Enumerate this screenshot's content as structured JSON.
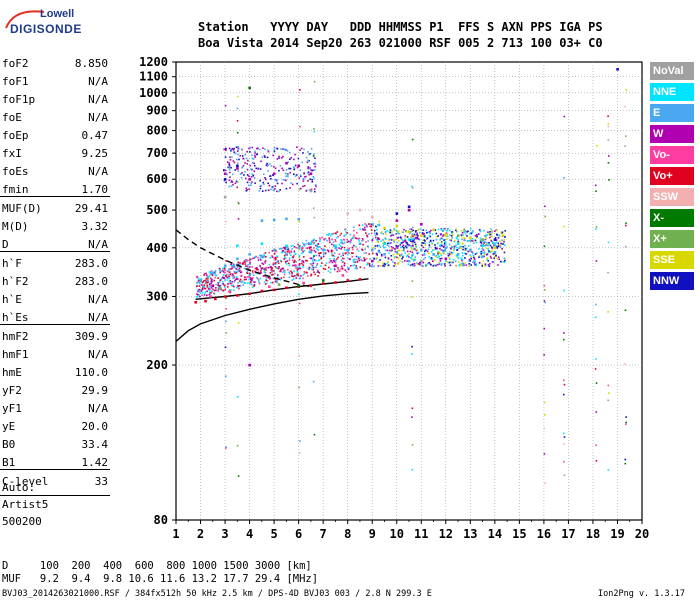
{
  "logo": {
    "top": "Lowell",
    "main": "DIGISONDE"
  },
  "header": {
    "line1": "Station   YYYY DAY   DDD HHMMSS P1  FFS S AXN PPS IGA PS",
    "line2": "Boa Vista 2014 Sep20 263 021000 RSF 005 2 713 100 03+ C0"
  },
  "params": [
    {
      "label": "foF2",
      "value": "8.850"
    },
    {
      "label": "foF1",
      "value": "N/A"
    },
    {
      "label": "foF1p",
      "value": "N/A"
    },
    {
      "label": "foE",
      "value": "N/A"
    },
    {
      "label": "foEp",
      "value": "0.47"
    },
    {
      "label": "fxI",
      "value": "9.25"
    },
    {
      "label": "foEs",
      "value": "N/A"
    },
    {
      "label": "fmin",
      "value": "1.70"
    },
    {
      "label": "MUF(D)",
      "value": "29.41"
    },
    {
      "label": "M(D)",
      "value": "3.32"
    },
    {
      "label": "D",
      "value": "N/A"
    },
    {
      "label": "h`F",
      "value": "283.0"
    },
    {
      "label": "h`F2",
      "value": "283.0"
    },
    {
      "label": "h`E",
      "value": "N/A"
    },
    {
      "label": "h`Es",
      "value": "N/A"
    },
    {
      "label": "hmF2",
      "value": "309.9"
    },
    {
      "label": "hmF1",
      "value": "N/A"
    },
    {
      "label": "hmE",
      "value": "110.0"
    },
    {
      "label": "yF2",
      "value": "29.9"
    },
    {
      "label": "yF1",
      "value": "N/A"
    },
    {
      "label": "yE",
      "value": "20.0"
    },
    {
      "label": "B0",
      "value": "33.4"
    },
    {
      "label": "B1",
      "value": "1.42"
    },
    {
      "label": "C-level",
      "value": "33"
    }
  ],
  "auto": [
    "Auto:",
    "Artist5",
    "500200"
  ],
  "legend": [
    {
      "label": "NoVal",
      "color": "#a0a0a0"
    },
    {
      "label": "NNE",
      "color": "#00e5ff"
    },
    {
      "label": "E",
      "color": "#4aa8f0"
    },
    {
      "label": "W",
      "color": "#b000b0"
    },
    {
      "label": "Vo-",
      "color": "#ff3ca0"
    },
    {
      "label": "Vo+",
      "color": "#e00020"
    },
    {
      "label": "SSW",
      "color": "#f4b0b0"
    },
    {
      "label": "X-",
      "color": "#007a00"
    },
    {
      "label": "X+",
      "color": "#70b050"
    },
    {
      "label": "SSE",
      "color": "#d8d800"
    },
    {
      "label": "NNW",
      "color": "#1010c0"
    }
  ],
  "footer": {
    "d_line": "D     100  200  400  600  800 1000 1500 3000 [km]",
    "muf_line": "MUF   9.2  9.4  9.8 10.6 11.6 13.2 17.7 29.4 [MHz]",
    "file_line": "BVJ03_2014263021000.RSF / 384fx512h 50 kHz 2.5 km / DPS-4D BVJ03 003 / 2.8 N 299.3 E",
    "version": "Ion2Png v. 1.3.17"
  },
  "chart_data": {
    "type": "scatter",
    "title": "",
    "xlabel": "",
    "ylabel": "",
    "xlim": [
      1,
      20
    ],
    "ylim": [
      80,
      1200
    ],
    "x_ticks": [
      1,
      2,
      3,
      4,
      5,
      6,
      7,
      8,
      9,
      10,
      11,
      12,
      13,
      14,
      15,
      16,
      17,
      18,
      19,
      20
    ],
    "y_ticks": [
      80,
      200,
      300,
      400,
      500,
      600,
      700,
      800,
      900,
      1000,
      1100,
      1200
    ],
    "grid": true,
    "legend_placement": "right",
    "curves": [
      {
        "name": "",
        "color": "#000000",
        "style": "dashed",
        "x": [
          1.0,
          1.5,
          2.0,
          3.0,
          4.0,
          5.0,
          6.0,
          6.5
        ],
        "y": [
          445,
          420,
          400,
          372,
          350,
          335,
          322,
          318
        ]
      },
      {
        "name": "",
        "color": "#000000",
        "style": "solid",
        "x": [
          1.0,
          1.5,
          2.0,
          3.0,
          4.0,
          5.0,
          6.0,
          7.0,
          8.0,
          8.5,
          8.85
        ],
        "y": [
          230,
          245,
          255,
          268,
          278,
          287,
          295,
          301,
          305,
          306,
          307
        ]
      },
      {
        "name": "",
        "color": "#000000",
        "style": "solid",
        "x": [
          1.8,
          2.5,
          3.0,
          4.0,
          5.0,
          6.0,
          7.0,
          8.0,
          8.85
        ],
        "y": [
          295,
          298,
          300,
          305,
          312,
          318,
          323,
          328,
          333
        ]
      }
    ],
    "series": [
      {
        "name": "E",
        "color": "#4aa8f0",
        "points": [
          {
            "x": 2.0,
            "y": 330
          },
          {
            "x": 2.5,
            "y": 345
          },
          {
            "x": 3.0,
            "y": 360
          },
          {
            "x": 3.5,
            "y": 375
          },
          {
            "x": 4.0,
            "y": 385
          },
          {
            "x": 4.5,
            "y": 380
          },
          {
            "x": 5.0,
            "y": 395
          },
          {
            "x": 5.5,
            "y": 385
          },
          {
            "x": 6.0,
            "y": 400
          },
          {
            "x": 6.5,
            "y": 390
          },
          {
            "x": 7.0,
            "y": 395
          },
          {
            "x": 7.5,
            "y": 400
          },
          {
            "x": 8.0,
            "y": 395
          },
          {
            "x": 8.5,
            "y": 410
          },
          {
            "x": 9.0,
            "y": 395
          },
          {
            "x": 9.5,
            "y": 385
          },
          {
            "x": 10.0,
            "y": 390
          },
          {
            "x": 10.5,
            "y": 370
          },
          {
            "x": 11.0,
            "y": 395
          },
          {
            "x": 11.5,
            "y": 385
          },
          {
            "x": 12.0,
            "y": 400
          },
          {
            "x": 12.5,
            "y": 385
          },
          {
            "x": 13.0,
            "y": 395
          },
          {
            "x": 13.5,
            "y": 380
          },
          {
            "x": 14.0,
            "y": 390
          },
          {
            "x": 4.5,
            "y": 470
          },
          {
            "x": 5.0,
            "y": 472
          },
          {
            "x": 5.5,
            "y": 475
          },
          {
            "x": 6.0,
            "y": 474
          }
        ]
      },
      {
        "name": "NNE",
        "color": "#00e5ff",
        "points": [
          {
            "x": 3.5,
            "y": 405
          },
          {
            "x": 4.5,
            "y": 410
          },
          {
            "x": 5.5,
            "y": 405
          },
          {
            "x": 6.5,
            "y": 410
          },
          {
            "x": 7.5,
            "y": 405
          },
          {
            "x": 9.5,
            "y": 410
          },
          {
            "x": 10.5,
            "y": 420
          },
          {
            "x": 12.5,
            "y": 410
          },
          {
            "x": 13.5,
            "y": 405
          }
        ]
      },
      {
        "name": "W",
        "color": "#b000b0",
        "points": [
          {
            "x": 2.5,
            "y": 320
          },
          {
            "x": 3.0,
            "y": 620
          },
          {
            "x": 3.5,
            "y": 640
          },
          {
            "x": 4.0,
            "y": 600
          },
          {
            "x": 5.0,
            "y": 620
          },
          {
            "x": 5.5,
            "y": 660
          },
          {
            "x": 6.0,
            "y": 650
          },
          {
            "x": 6.5,
            "y": 620
          },
          {
            "x": 7.5,
            "y": 360
          },
          {
            "x": 9.0,
            "y": 370
          },
          {
            "x": 10.0,
            "y": 470
          },
          {
            "x": 10.5,
            "y": 500
          },
          {
            "x": 11.0,
            "y": 460
          },
          {
            "x": 12.0,
            "y": 375
          },
          {
            "x": 4.0,
            "y": 200
          }
        ]
      },
      {
        "name": "Vo+",
        "color": "#e00020",
        "points": [
          {
            "x": 1.8,
            "y": 290
          },
          {
            "x": 2.2,
            "y": 292
          },
          {
            "x": 2.6,
            "y": 296
          },
          {
            "x": 3.0,
            "y": 300
          },
          {
            "x": 3.5,
            "y": 302
          },
          {
            "x": 4.0,
            "y": 305
          },
          {
            "x": 4.5,
            "y": 310
          },
          {
            "x": 5.0,
            "y": 312
          },
          {
            "x": 5.5,
            "y": 316
          },
          {
            "x": 6.0,
            "y": 318
          },
          {
            "x": 6.5,
            "y": 320
          },
          {
            "x": 7.0,
            "y": 324
          },
          {
            "x": 7.5,
            "y": 326
          },
          {
            "x": 8.0,
            "y": 330
          },
          {
            "x": 8.5,
            "y": 332
          }
        ]
      },
      {
        "name": "Vo-",
        "color": "#ff3ca0",
        "points": [
          {
            "x": 2.4,
            "y": 300
          },
          {
            "x": 3.2,
            "y": 308
          },
          {
            "x": 4.8,
            "y": 318
          },
          {
            "x": 6.2,
            "y": 325
          },
          {
            "x": 7.8,
            "y": 340
          }
        ]
      },
      {
        "name": "X-",
        "color": "#007a00",
        "points": [
          {
            "x": 4.0,
            "y": 1030
          },
          {
            "x": 6.0,
            "y": 320
          },
          {
            "x": 7.0,
            "y": 330
          }
        ]
      },
      {
        "name": "X+",
        "color": "#70b050",
        "points": [
          {
            "x": 2.8,
            "y": 315
          },
          {
            "x": 5.2,
            "y": 322
          },
          {
            "x": 12.5,
            "y": 430
          },
          {
            "x": 13.5,
            "y": 420
          }
        ]
      },
      {
        "name": "SSW",
        "color": "#f4b0b0",
        "points": [
          {
            "x": 8.0,
            "y": 490
          },
          {
            "x": 8.5,
            "y": 500
          },
          {
            "x": 9.0,
            "y": 480
          }
        ]
      },
      {
        "name": "SSE",
        "color": "#d8d800",
        "points": [
          {
            "x": 9.5,
            "y": 450
          },
          {
            "x": 10.0,
            "y": 455
          },
          {
            "x": 10.5,
            "y": 440
          },
          {
            "x": 11.0,
            "y": 430
          },
          {
            "x": 11.5,
            "y": 445
          },
          {
            "x": 12.0,
            "y": 430
          },
          {
            "x": 13.0,
            "y": 425
          },
          {
            "x": 14.0,
            "y": 400
          }
        ]
      },
      {
        "name": "NNW",
        "color": "#1010c0",
        "points": [
          {
            "x": 3.0,
            "y": 600
          },
          {
            "x": 3.5,
            "y": 650
          },
          {
            "x": 10.0,
            "y": 490
          },
          {
            "x": 10.5,
            "y": 510
          },
          {
            "x": 14.0,
            "y": 420
          },
          {
            "x": 19.0,
            "y": 1150
          }
        ]
      },
      {
        "name": "NoVal",
        "color": "#a0a0a0",
        "points": [
          {
            "x": 3.0,
            "y": 540
          },
          {
            "x": 6.5,
            "y": 560
          },
          {
            "x": 11.0,
            "y": 370
          }
        ]
      }
    ]
  }
}
